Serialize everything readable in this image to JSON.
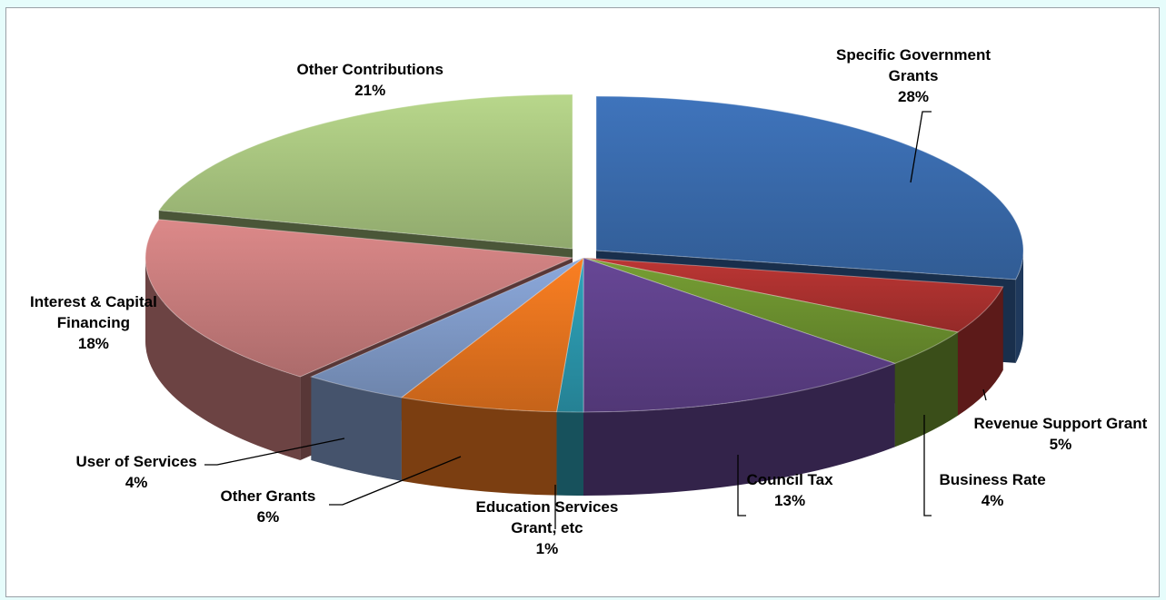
{
  "chart_data": {
    "type": "pie",
    "title": "",
    "three_d": true,
    "slices": [
      {
        "name": "Specific Government Grants",
        "value": 28,
        "pct": "28%",
        "color": "#3868a8",
        "label": [
          "Specific Government",
          "Grants",
          "28%"
        ]
      },
      {
        "name": "Revenue Support Grant",
        "value": 5,
        "pct": "5%",
        "color": "#a8302e",
        "label": [
          "Revenue Support Grant",
          "5%"
        ]
      },
      {
        "name": "Business Rate",
        "value": 4,
        "pct": "4%",
        "color": "#6a8e2e",
        "label": [
          "Business Rate",
          "4%"
        ]
      },
      {
        "name": "Council Tax",
        "value": 13,
        "pct": "13%",
        "color": "#5c3f86",
        "label": [
          "Council Tax",
          "13%"
        ]
      },
      {
        "name": "Education Services Grant, etc",
        "value": 1,
        "pct": "1%",
        "color": "#2a93a8",
        "label": [
          "Education Services",
          "Grant, etc",
          "1%"
        ]
      },
      {
        "name": "Other Grants",
        "value": 6,
        "pct": "6%",
        "color": "#e0711e",
        "label": [
          "Other Grants",
          "6%"
        ]
      },
      {
        "name": "User of Services",
        "value": 4,
        "pct": "4%",
        "color": "#7d97c4",
        "label": [
          "User of Services",
          "4%"
        ]
      },
      {
        "name": "Interest & Capital Financing",
        "value": 18,
        "pct": "18%",
        "color": "#c47a7a",
        "label": [
          "Interest & Capital",
          "Financing",
          "18%"
        ]
      },
      {
        "name": "Other Contributions",
        "value": 21,
        "pct": "21%",
        "color": "#a4c07c",
        "label": [
          "Other Contributions",
          "21%"
        ]
      }
    ],
    "legend": "none",
    "data_labels": "category-and-percent"
  }
}
